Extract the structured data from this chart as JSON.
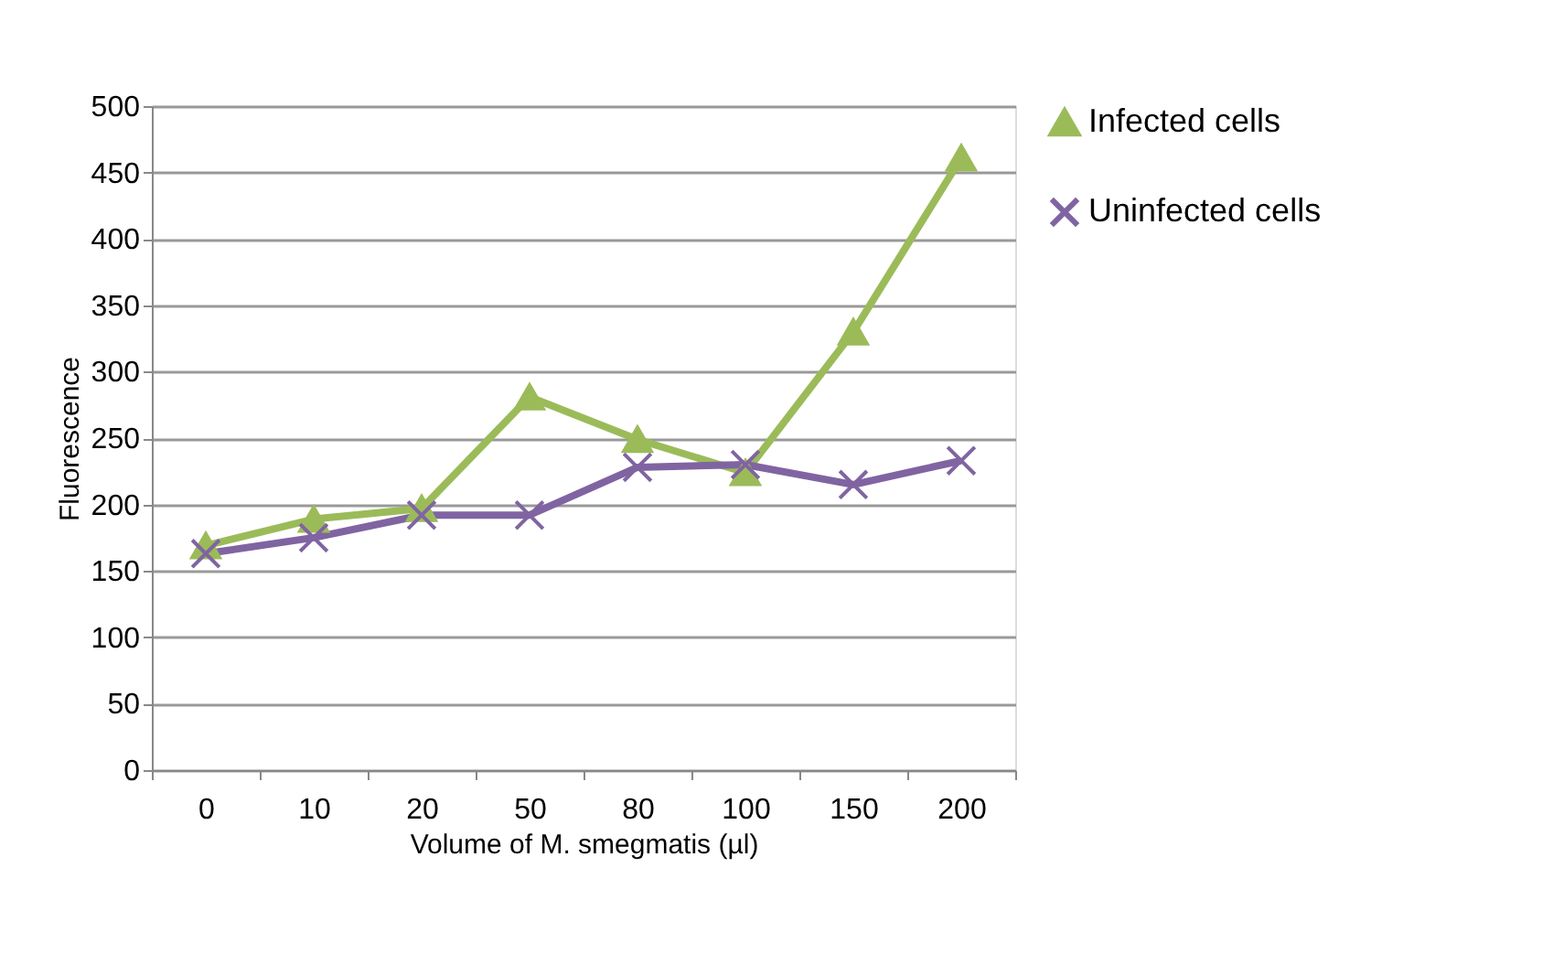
{
  "chart_data": {
    "type": "line",
    "xlabel": "Volume of M. smegmatis (µl)",
    "ylabel": "Fluorescence",
    "categories": [
      "0",
      "10",
      "20",
      "50",
      "80",
      "100",
      "150",
      "200"
    ],
    "series": [
      {
        "name": "Infected cells",
        "color": "#9bbb59",
        "marker": "triangle",
        "values": [
          169,
          189,
          197,
          281,
          249,
          224,
          330,
          461
        ]
      },
      {
        "name": "Uninfected cells",
        "color": "#8064a2",
        "marker": "cross",
        "values": [
          163,
          175,
          192,
          192,
          228,
          230,
          215,
          233
        ]
      }
    ],
    "ylim": [
      0,
      500
    ],
    "yticks": [
      0,
      50,
      100,
      150,
      200,
      250,
      300,
      350,
      400,
      450,
      500
    ],
    "grid": "y",
    "legend": "right",
    "line_style": "solid"
  }
}
